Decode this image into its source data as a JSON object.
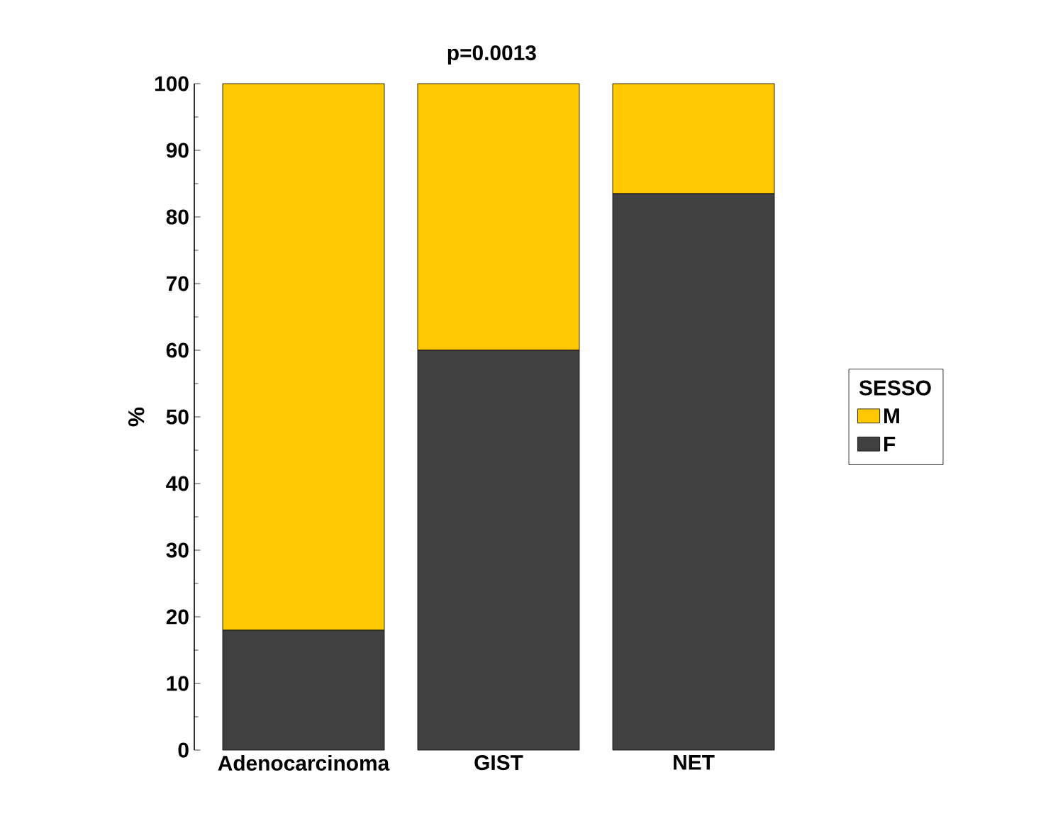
{
  "chart_data": {
    "type": "bar",
    "stacked": true,
    "title": "p=0.0013",
    "ylabel": "%",
    "legend_title": "SESSO",
    "legend": "right",
    "categories": [
      "Adenocarcinoma",
      "GIST",
      "NET"
    ],
    "series": [
      {
        "name": "F",
        "color": "#404040",
        "values": [
          18,
          60,
          83.5
        ]
      },
      {
        "name": "M",
        "color": "#ffc800",
        "values": [
          82,
          40,
          16.5
        ]
      }
    ],
    "ylim": [
      0,
      100
    ],
    "yticks": [
      0,
      10,
      20,
      30,
      40,
      50,
      60,
      70,
      80,
      90,
      100
    ]
  }
}
